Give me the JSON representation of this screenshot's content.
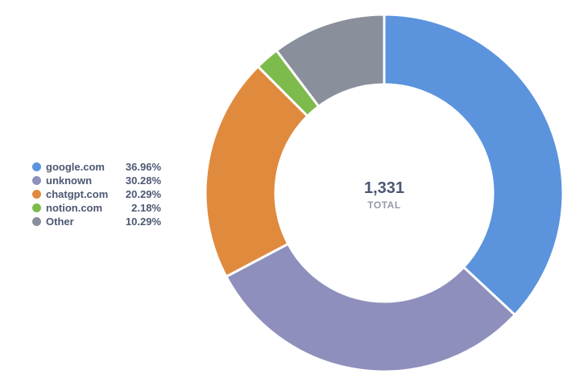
{
  "chart_data": {
    "type": "pie",
    "variant": "donut",
    "total_value": "1,331",
    "total_label": "TOTAL",
    "legend_position": "left",
    "slices": [
      {
        "name": "google.com",
        "percent": 36.96,
        "percent_label": "36.96%",
        "color": "#5b93dd"
      },
      {
        "name": "unknown",
        "percent": 30.28,
        "percent_label": "30.28%",
        "color": "#8f8fbd"
      },
      {
        "name": "chatgpt.com",
        "percent": 20.29,
        "percent_label": "20.29%",
        "color": "#e08a3e"
      },
      {
        "name": "notion.com",
        "percent": 2.18,
        "percent_label": "2.18%",
        "color": "#7dbb4d"
      },
      {
        "name": "Other",
        "percent": 10.29,
        "percent_label": "10.29%",
        "color": "#8a8f9c"
      }
    ]
  }
}
